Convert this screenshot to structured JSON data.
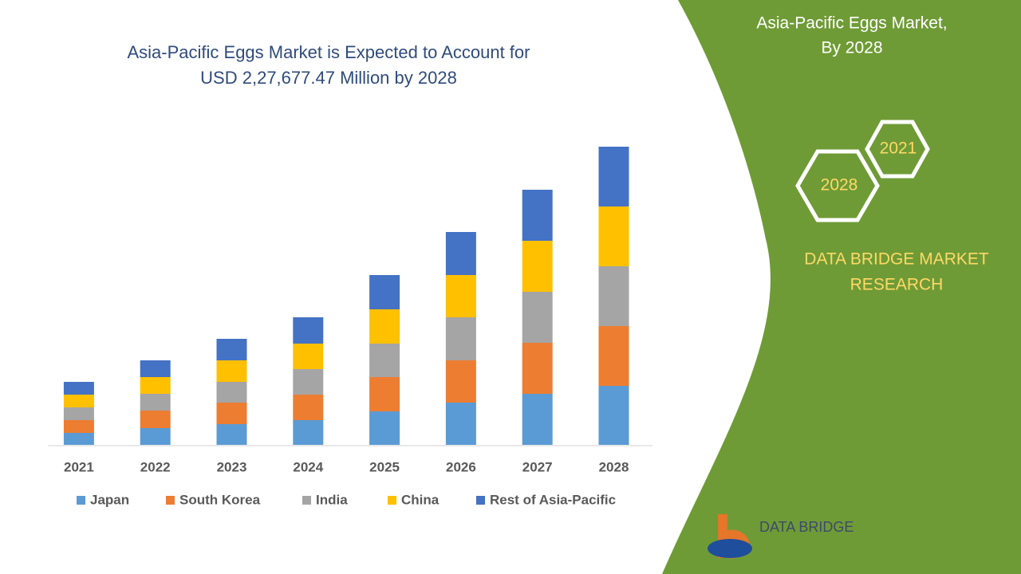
{
  "chart_data": {
    "type": "stacked-bar",
    "title": "Asia-Pacific Eggs Market is Expected to Account for USD 2,27,677.47 Million by 2028",
    "categories": [
      "2021",
      "2022",
      "2023",
      "2024",
      "2025",
      "2026",
      "2027",
      "2028"
    ],
    "series": [
      {
        "name": "Japan",
        "color": "#5b9bd5",
        "values": [
          15,
          21,
          26,
          31,
          42,
          53,
          64,
          74
        ]
      },
      {
        "name": "South Korea",
        "color": "#ed7d31",
        "values": [
          16,
          22,
          27,
          32,
          43,
          53,
          64,
          75
        ]
      },
      {
        "name": "India",
        "color": "#a5a5a5",
        "values": [
          16,
          21,
          26,
          32,
          42,
          54,
          64,
          75
        ]
      },
      {
        "name": "China",
        "color": "#ffc000",
        "values": [
          16,
          21,
          27,
          32,
          43,
          53,
          64,
          75
        ]
      },
      {
        "name": "Rest of Asia-Pacific",
        "color": "#4472c4",
        "values": [
          16,
          21,
          27,
          33,
          43,
          54,
          64,
          75
        ]
      }
    ],
    "legend": "bottom"
  },
  "panel": {
    "title_line1": "Asia-Pacific Eggs Market,",
    "title_line2": "By 2028",
    "hex_top": "2021",
    "hex_bottom": "2028",
    "brand_line1": "DATA BRIDGE MARKET",
    "brand_line2": "RESEARCH",
    "logo": "DATA BRIDGE"
  }
}
